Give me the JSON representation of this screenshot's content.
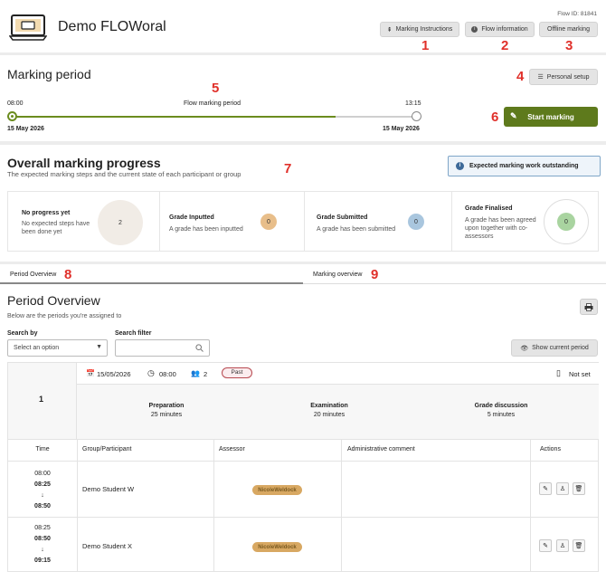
{
  "header": {
    "title": "Demo FLOWoral",
    "flow_id": "Flow ID: 81841",
    "marking_instructions": "Marking Instructions",
    "flow_information": "Flow information",
    "offline_marking": "Offline marking"
  },
  "markers": {
    "m1": "1",
    "m2": "2",
    "m3": "3",
    "m4": "4",
    "m5": "5",
    "m6": "6",
    "m7": "7",
    "m8": "8",
    "m9": "9"
  },
  "marking_period": {
    "title": "Marking period",
    "personal_setup": "Personal setup",
    "start_time": "08:00",
    "end_time": "13:15",
    "label": "Flow marking period",
    "start_date": "15 May 2026",
    "end_date": "15 May 2026",
    "progress_fraction": 0.8,
    "start_marking": "Start marking"
  },
  "overall": {
    "title": "Overall marking progress",
    "subtitle": "The expected marking steps and the current state of each participant or group",
    "info_box": "Expected marking work outstanding",
    "cards": [
      {
        "title": "No progress yet",
        "desc": "No expected steps have been done yet",
        "count": "2"
      },
      {
        "title": "Grade Inputted",
        "desc": "A grade has been inputted",
        "count": "0"
      },
      {
        "title": "Grade Submitted",
        "desc": "A grade has been submitted",
        "count": "0"
      },
      {
        "title": "Grade Finalised",
        "desc": "A grade has been agreed upon together with co-assessors",
        "count": "0"
      }
    ]
  },
  "tabs": {
    "period_overview": "Period Overview",
    "marking_overview": "Marking overview"
  },
  "period": {
    "title": "Period Overview",
    "subtitle": "Below are the periods you're assigned to",
    "search_by_label": "Search by",
    "search_by_value": "Select an option",
    "search_filter_label": "Search filter",
    "search_filter_placeholder": "",
    "show_current": "Show current period",
    "number": "1",
    "date": "15/05/2026",
    "time": "08:00",
    "participants": "2",
    "status": "Past",
    "not_set": "Not set",
    "phases": [
      {
        "name": "Preparation",
        "duration": "25 minutes"
      },
      {
        "name": "Examination",
        "duration": "20 minutes"
      },
      {
        "name": "Grade discussion",
        "duration": "5 minutes"
      }
    ],
    "columns": {
      "time": "Time",
      "group": "Group/Participant",
      "assessor": "Assessor",
      "comment": "Administrative comment",
      "actions": "Actions"
    },
    "rows": [
      {
        "t1": "08:00",
        "t2": "08:25",
        "arrow": "↓",
        "t3": "08:50",
        "participant": "Demo Student W",
        "assessor": "NicoleWeldock",
        "comment": ""
      },
      {
        "t1": "08:25",
        "t2": "08:50",
        "arrow": "↓",
        "t3": "09:15",
        "participant": "Demo Student X",
        "assessor": "NicoleWeldock",
        "comment": ""
      }
    ]
  }
}
